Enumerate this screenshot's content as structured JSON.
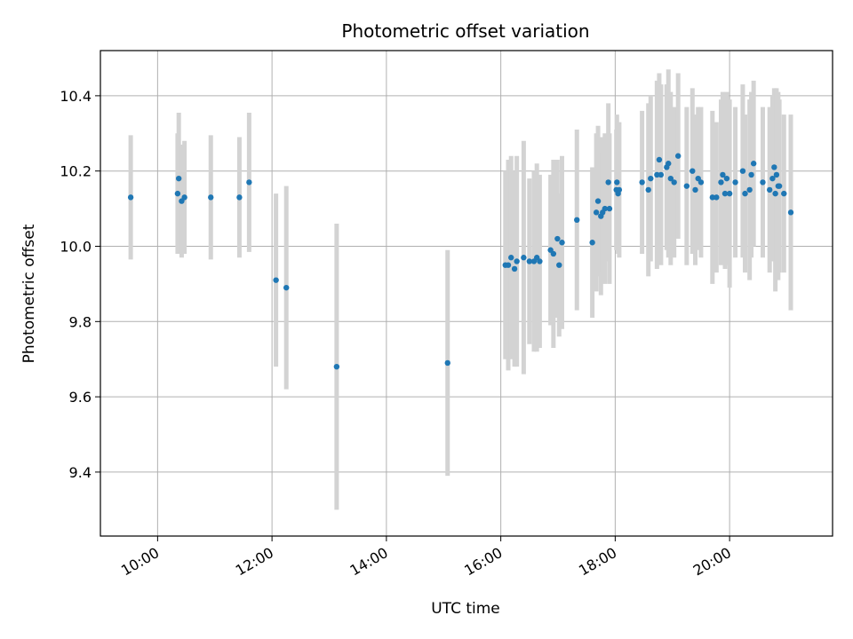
{
  "chart_data": {
    "type": "scatter",
    "title": "Photometric offset variation",
    "xlabel": "UTC time",
    "ylabel": "Photometric offset",
    "xlim": [
      9.0,
      21.8
    ],
    "ylim": [
      9.23,
      10.52
    ],
    "x_ticks": [
      {
        "value": 10,
        "label": "10:00"
      },
      {
        "value": 12,
        "label": "12:00"
      },
      {
        "value": 14,
        "label": "14:00"
      },
      {
        "value": 16,
        "label": "16:00"
      },
      {
        "value": 18,
        "label": "18:00"
      },
      {
        "value": 20,
        "label": "20:00"
      }
    ],
    "y_ticks": [
      {
        "value": 9.4,
        "label": "9.4"
      },
      {
        "value": 9.6,
        "label": "9.6"
      },
      {
        "value": 9.8,
        "label": "9.8"
      },
      {
        "value": 10.0,
        "label": "10.0"
      },
      {
        "value": 10.2,
        "label": "10.2"
      },
      {
        "value": 10.4,
        "label": "10.4"
      }
    ],
    "grid": true,
    "colors": {
      "points": "#1f77b4",
      "error_bars": "#d3d3d3",
      "grid": "#b0b0b0"
    },
    "series": [
      {
        "x": [
          9.53,
          10.35,
          10.37,
          10.42,
          10.47,
          10.93,
          11.43,
          11.6,
          12.07,
          12.25,
          13.13,
          15.07,
          16.08,
          16.13,
          16.18,
          16.24,
          16.28,
          16.4,
          16.5,
          16.58,
          16.63,
          16.68,
          16.87,
          16.92,
          16.99,
          17.02,
          17.07,
          17.33,
          17.6,
          17.67,
          17.7,
          17.75,
          17.78,
          17.82,
          17.88,
          17.9,
          18.02,
          18.03,
          18.05,
          18.07,
          18.47,
          18.58,
          18.62,
          18.73,
          18.77,
          18.8,
          18.9,
          18.93,
          18.97,
          19.03,
          19.1,
          19.25,
          19.35,
          19.4,
          19.45,
          19.5,
          19.7,
          19.77,
          19.85,
          19.88,
          19.92,
          19.95,
          20.0,
          20.1,
          20.23,
          20.27,
          20.35,
          20.38,
          20.42,
          20.58,
          20.7,
          20.75,
          20.78,
          20.8,
          20.82,
          20.85,
          20.87,
          20.95,
          21.07
        ],
        "y": [
          10.13,
          10.14,
          10.18,
          10.12,
          10.13,
          10.13,
          10.13,
          10.17,
          9.91,
          9.89,
          9.68,
          9.69,
          9.95,
          9.95,
          9.97,
          9.94,
          9.96,
          9.97,
          9.96,
          9.96,
          9.97,
          9.96,
          9.99,
          9.98,
          10.02,
          9.95,
          10.01,
          10.07,
          10.01,
          10.09,
          10.12,
          10.08,
          10.09,
          10.1,
          10.17,
          10.1,
          10.15,
          10.17,
          10.14,
          10.15,
          10.17,
          10.15,
          10.18,
          10.19,
          10.23,
          10.19,
          10.21,
          10.22,
          10.18,
          10.17,
          10.24,
          10.16,
          10.2,
          10.15,
          10.18,
          10.17,
          10.13,
          10.13,
          10.17,
          10.19,
          10.14,
          10.18,
          10.14,
          10.17,
          10.2,
          10.14,
          10.15,
          10.19,
          10.22,
          10.17,
          10.15,
          10.18,
          10.21,
          10.14,
          10.19,
          10.16,
          10.16,
          10.14,
          10.09
        ],
        "err": [
          0.165,
          0.16,
          0.175,
          0.15,
          0.15,
          0.165,
          0.16,
          0.185,
          0.23,
          0.27,
          0.38,
          0.3,
          0.25,
          0.28,
          0.27,
          0.26,
          0.28,
          0.31,
          0.22,
          0.24,
          0.25,
          0.23,
          0.2,
          0.25,
          0.21,
          0.19,
          0.23,
          0.24,
          0.2,
          0.21,
          0.2,
          0.21,
          0.16,
          0.2,
          0.21,
          0.2,
          0.16,
          0.18,
          0.16,
          0.18,
          0.19,
          0.23,
          0.22,
          0.25,
          0.23,
          0.24,
          0.22,
          0.25,
          0.23,
          0.2,
          0.22,
          0.21,
          0.22,
          0.2,
          0.19,
          0.2,
          0.23,
          0.2,
          0.22,
          0.22,
          0.2,
          0.23,
          0.25,
          0.2,
          0.23,
          0.21,
          0.24,
          0.22,
          0.22,
          0.2,
          0.22,
          0.22,
          0.21,
          0.26,
          0.23,
          0.25,
          0.23,
          0.21,
          0.26
        ]
      }
    ]
  }
}
